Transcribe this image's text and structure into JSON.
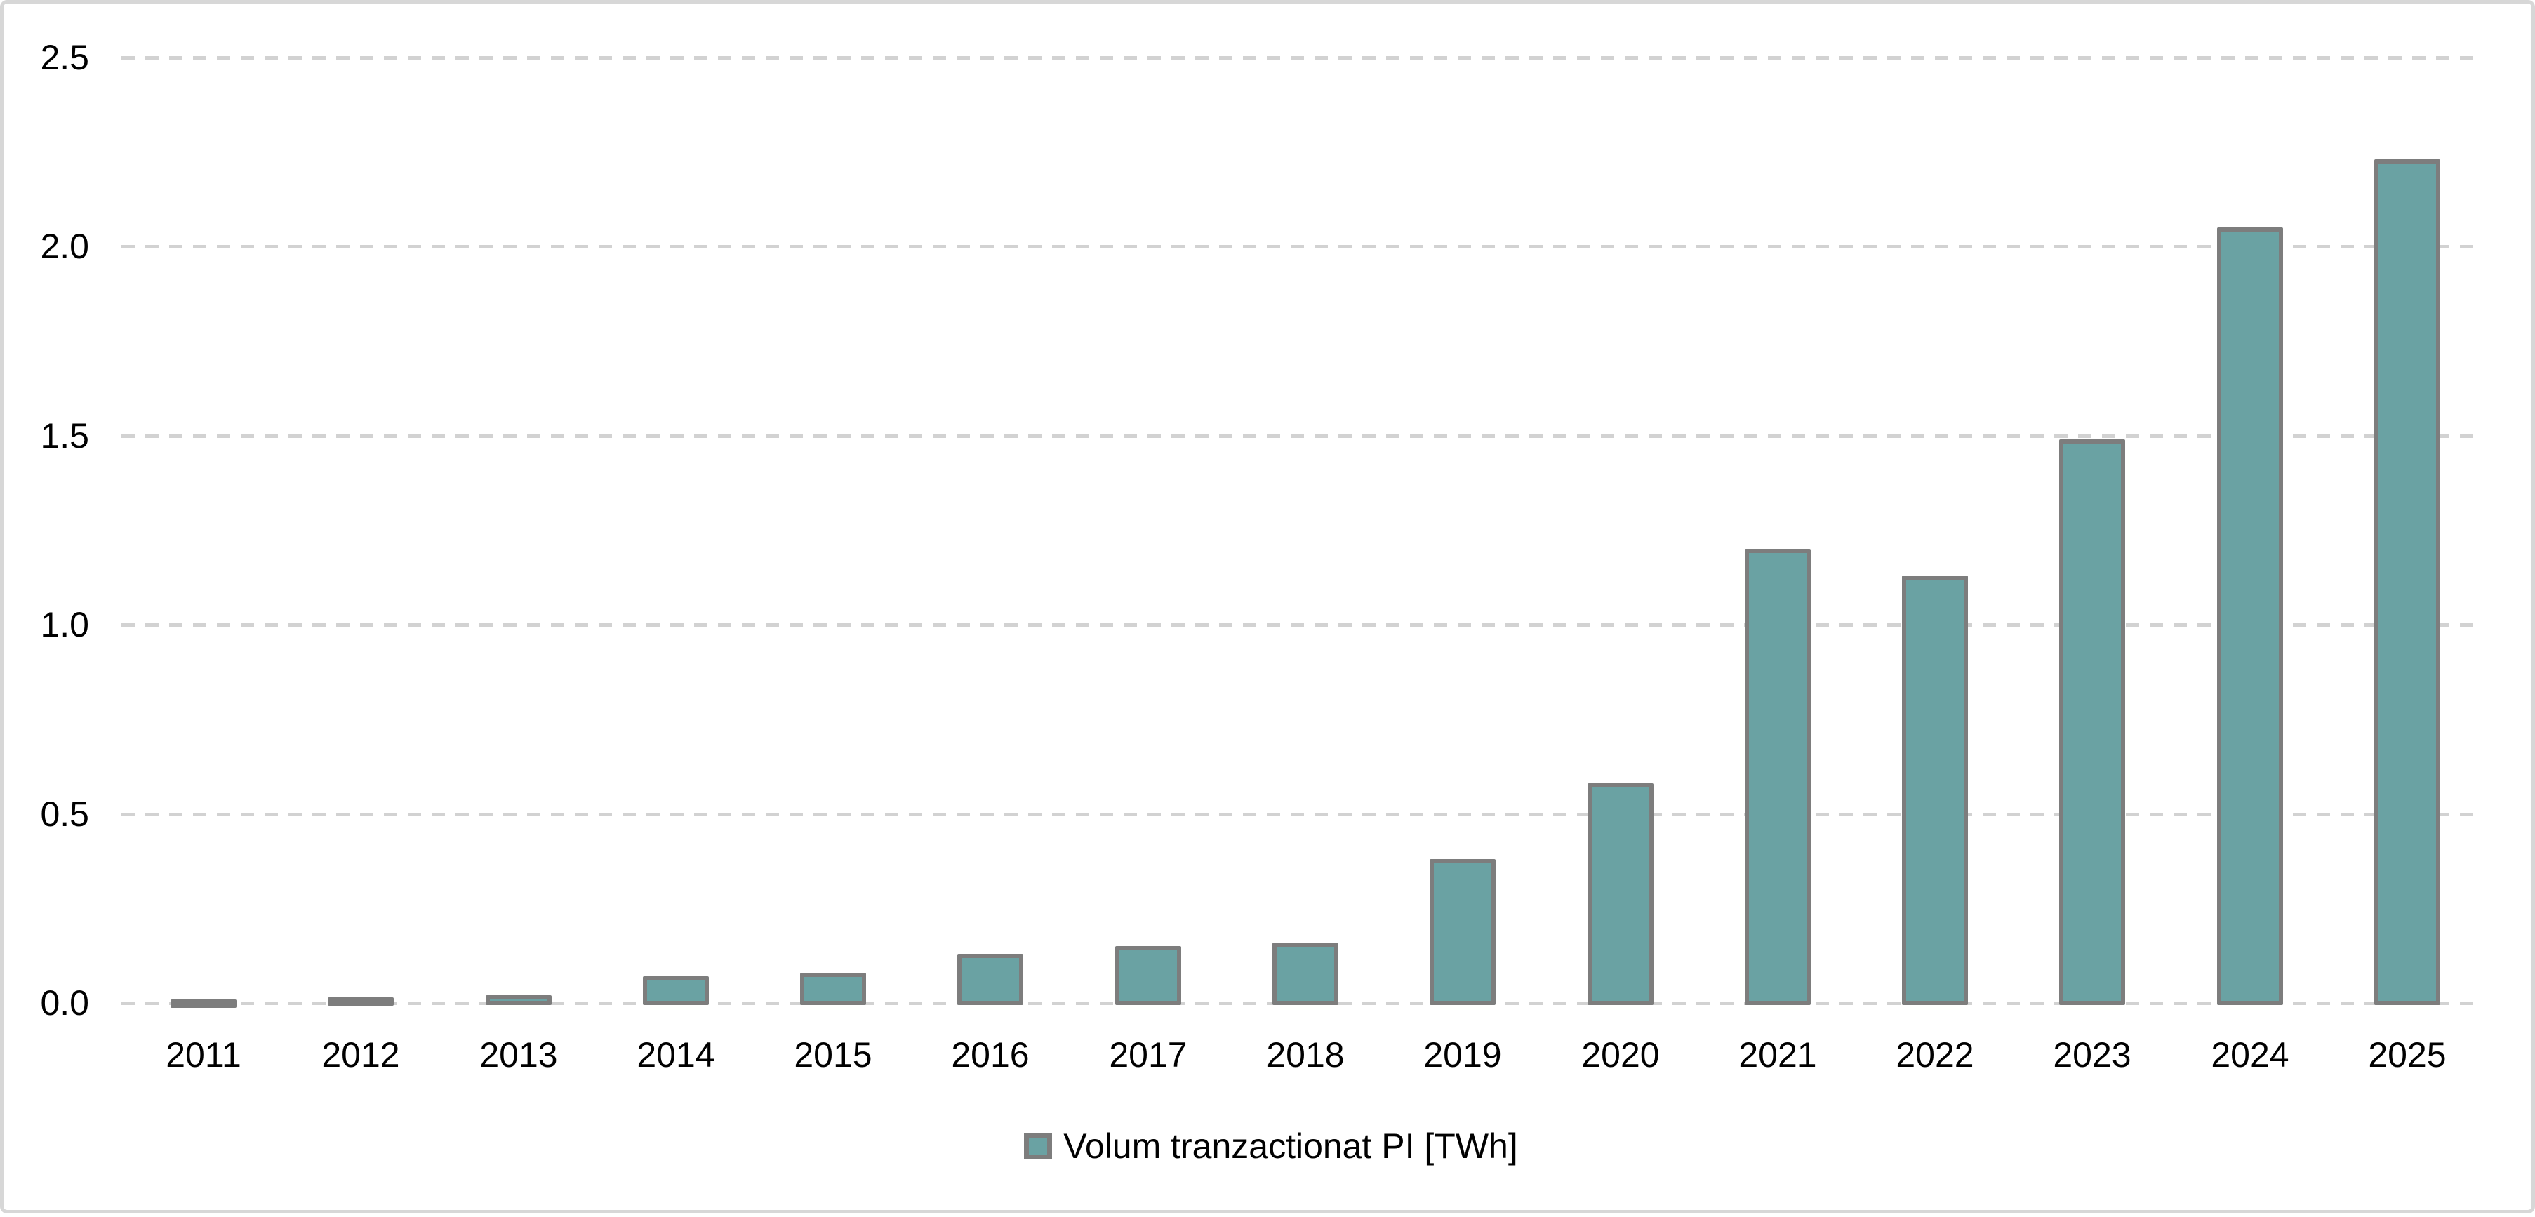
{
  "chart_data": {
    "type": "bar",
    "title": "",
    "xlabel": "",
    "ylabel": "",
    "categories": [
      "2011",
      "2012",
      "2013",
      "2014",
      "2015",
      "2016",
      "2017",
      "2018",
      "2019",
      "2020",
      "2021",
      "2022",
      "2023",
      "2024",
      "2025"
    ],
    "values": [
      0.01,
      0.015,
      0.02,
      0.07,
      0.08,
      0.13,
      0.15,
      0.16,
      0.38,
      0.58,
      1.2,
      1.13,
      1.49,
      2.05,
      2.23
    ],
    "series": [
      {
        "name": "Volum tranzactionat PI [TWh]",
        "values": [
          0.01,
          0.015,
          0.02,
          0.07,
          0.08,
          0.13,
          0.15,
          0.16,
          0.38,
          0.58,
          1.2,
          1.13,
          1.49,
          2.05,
          2.23
        ]
      }
    ],
    "ylim": [
      0,
      2.5
    ],
    "ytick_values": [
      0,
      0.5,
      1,
      1.5,
      2,
      2.5
    ],
    "ytick_labels": [
      "0.0",
      "0.5",
      "1.0",
      "1.5",
      "2.0",
      "2.5"
    ],
    "grid": "horizontal-dashed",
    "legend_position": "bottom-center",
    "colors": {
      "bar_fill": "#6aa2a3",
      "bar_border": "#7d7d7d",
      "gridline": "#d2d2d2",
      "text": "#000000",
      "frame_border": "#d7d7d7",
      "background": "#ffffff"
    }
  },
  "legend": {
    "label": "Volum tranzactionat PI [TWh]"
  }
}
